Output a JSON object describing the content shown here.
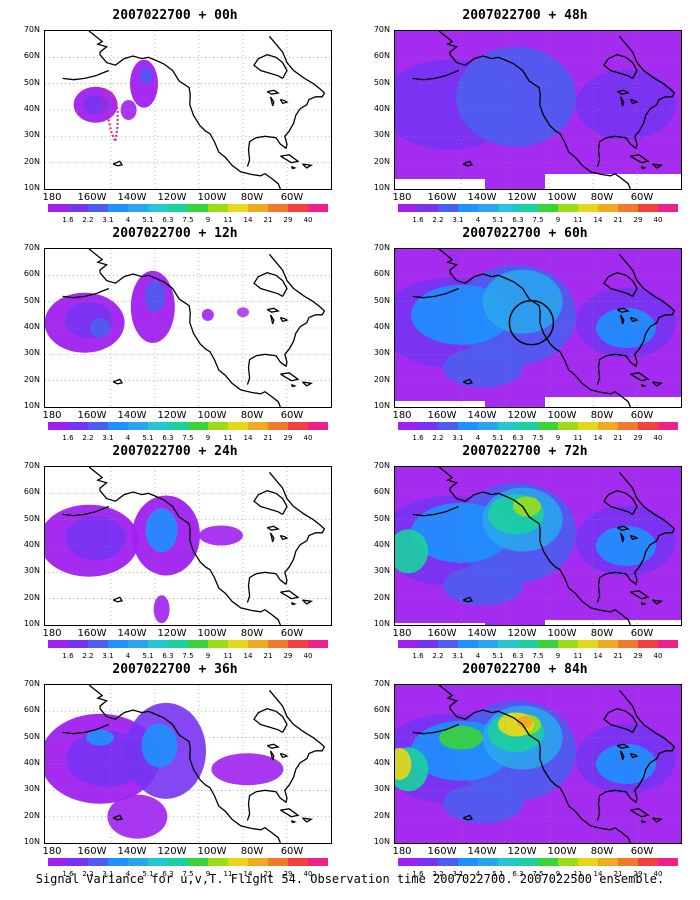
{
  "footer": "Signal Variance for u,v,T. Flight 54. Observation time 2007022700. 2007022500 ensemble.",
  "lat_labels": [
    "70N",
    "60N",
    "50N",
    "40N",
    "30N",
    "20N",
    "10N"
  ],
  "lon_labels": [
    "180",
    "160W",
    "140W",
    "120W",
    "100W",
    "80W",
    "60W"
  ],
  "colorbar": {
    "labels": [
      "1.6",
      "2.2",
      "3.1",
      "4",
      "5.1",
      "6.3",
      "7.5",
      "9",
      "11",
      "14",
      "21",
      "29",
      "40"
    ],
    "colors": [
      "#a020f0",
      "#7733f2",
      "#4d5df0",
      "#1e90ff",
      "#2aa4ed",
      "#24c6d2",
      "#19d2a0",
      "#39d43a",
      "#9bdc19",
      "#e6d71a",
      "#f0aa22",
      "#f07a2c",
      "#f04040",
      "#f0208a"
    ]
  },
  "panels": [
    {
      "title": "2007022700 + 00h",
      "intensity": 0.1
    },
    {
      "title": "2007022700 + 12h",
      "intensity": 0.22
    },
    {
      "title": "2007022700 + 24h",
      "intensity": 0.35
    },
    {
      "title": "2007022700 + 36h",
      "intensity": 0.45
    },
    {
      "title": "2007022700 + 48h",
      "intensity": 0.5
    },
    {
      "title": "2007022700 + 60h",
      "intensity": 0.62
    },
    {
      "title": "2007022700 + 72h",
      "intensity": 0.78
    },
    {
      "title": "2007022700 + 84h",
      "intensity": 0.9
    }
  ]
}
